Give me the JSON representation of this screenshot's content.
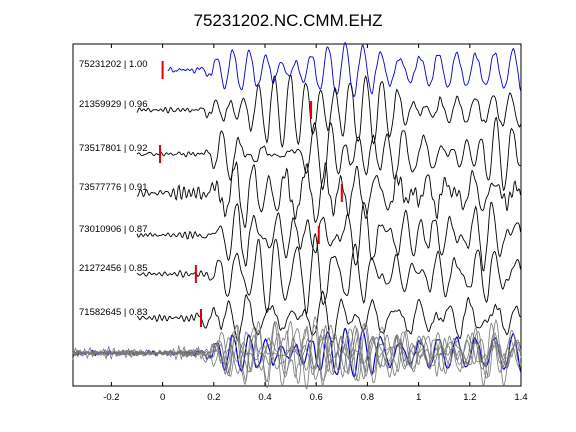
{
  "chart_data": {
    "type": "line",
    "title": "75231202.NC.CMM.EHZ",
    "xlabel": "",
    "ylabel": "",
    "xlim": [
      -0.35,
      1.4
    ],
    "xticks": [
      -0.2,
      0,
      0.2,
      0.4,
      0.6,
      0.8,
      1,
      1.2,
      1.4
    ],
    "xtick_labels": [
      "-0.2",
      "0",
      "0.2",
      "0.4",
      "0.6",
      "0.8",
      "1",
      "1.2",
      "1.4"
    ],
    "yticks": [],
    "grid": false,
    "legend": "none",
    "reference_color": "#0000cc",
    "trace_color": "#000000",
    "stack_color": "#777777",
    "marker_color": "#dd0000",
    "traces": [
      {
        "label": "75231202 | 1.00",
        "marker_time": 0.0,
        "color": "#0000cc"
      },
      {
        "label": "21359929 | 0.96",
        "marker_time": 0.58,
        "color": "#000000"
      },
      {
        "label": "73517801 | 0.92",
        "marker_time": -0.01,
        "color": "#000000"
      },
      {
        "label": "73577776 | 0.91",
        "marker_time": 0.7,
        "color": "#000000"
      },
      {
        "label": "73010906 | 0.87",
        "marker_time": 0.61,
        "color": "#000000"
      },
      {
        "label": "21272456 | 0.85",
        "marker_time": 0.13,
        "color": "#000000"
      },
      {
        "label": "71582645 | 0.83",
        "marker_time": 0.15,
        "color": "#000000"
      }
    ]
  }
}
